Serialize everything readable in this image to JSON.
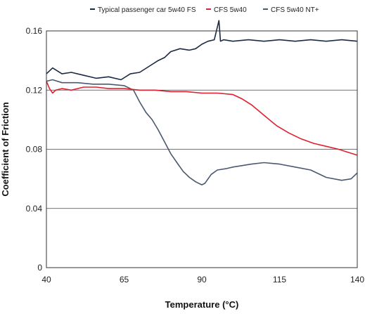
{
  "chart_data": {
    "type": "line",
    "xlabel": "Temperature (°C)",
    "ylabel": "Coefficient of Friction",
    "xlim": [
      40,
      140
    ],
    "ylim": [
      0,
      0.16
    ],
    "xticks": [
      "40",
      "65",
      "90",
      "115",
      "140"
    ],
    "yticks": [
      "0",
      "0.04",
      "0.08",
      "0.12",
      "0.16"
    ],
    "grid": "horizontal",
    "legend_position": "top",
    "series": [
      {
        "name": "Typical passenger car 5w40 FS",
        "color": "#1b2a44",
        "x": [
          40,
          42,
          45,
          48,
          52,
          56,
          60,
          64,
          67,
          70,
          73,
          76,
          78,
          80,
          83,
          86,
          88,
          90,
          92,
          94,
          95.5,
          96,
          97,
          100,
          105,
          110,
          115,
          120,
          125,
          130,
          135,
          140
        ],
        "y": [
          0.131,
          0.135,
          0.131,
          0.132,
          0.13,
          0.128,
          0.129,
          0.127,
          0.131,
          0.132,
          0.136,
          0.14,
          0.142,
          0.146,
          0.148,
          0.147,
          0.148,
          0.151,
          0.153,
          0.154,
          0.167,
          0.153,
          0.154,
          0.153,
          0.154,
          0.153,
          0.154,
          0.153,
          0.154,
          0.153,
          0.154,
          0.153
        ]
      },
      {
        "name": "CFS 5w40",
        "color": "#e0202e",
        "x": [
          40,
          41,
          42,
          43,
          45,
          48,
          52,
          56,
          60,
          65,
          70,
          75,
          80,
          85,
          90,
          95,
          100,
          103,
          106,
          110,
          114,
          118,
          122,
          126,
          130,
          134,
          137,
          140
        ],
        "y": [
          0.126,
          0.121,
          0.118,
          0.12,
          0.121,
          0.12,
          0.122,
          0.122,
          0.121,
          0.121,
          0.12,
          0.12,
          0.119,
          0.119,
          0.118,
          0.118,
          0.117,
          0.114,
          0.11,
          0.103,
          0.096,
          0.091,
          0.087,
          0.084,
          0.082,
          0.08,
          0.078,
          0.076
        ]
      },
      {
        "name": "CFS 5w40 NT+",
        "color": "#4b5870",
        "x": [
          40,
          42,
          45,
          50,
          55,
          60,
          65,
          68,
          70,
          72,
          74,
          76,
          78,
          80,
          82,
          84,
          86,
          88,
          90,
          91,
          93,
          95,
          98,
          100,
          103,
          106,
          110,
          115,
          120,
          125,
          130,
          135,
          138,
          140
        ],
        "y": [
          0.126,
          0.127,
          0.125,
          0.125,
          0.124,
          0.124,
          0.123,
          0.12,
          0.112,
          0.105,
          0.1,
          0.093,
          0.085,
          0.077,
          0.071,
          0.065,
          0.061,
          0.058,
          0.056,
          0.057,
          0.063,
          0.066,
          0.067,
          0.068,
          0.069,
          0.07,
          0.071,
          0.07,
          0.068,
          0.066,
          0.061,
          0.059,
          0.06,
          0.064
        ]
      }
    ]
  }
}
